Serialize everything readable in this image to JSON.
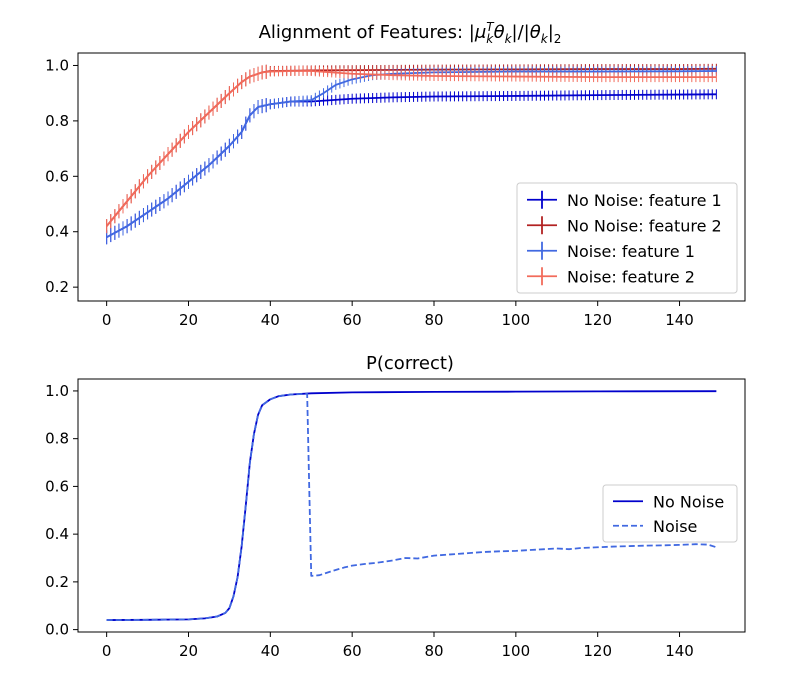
{
  "chart_data": [
    {
      "type": "line",
      "title": "Alignment of Features: |μ_k^T θ_k|/|θ_k|_2",
      "title_parts": {
        "prefix": "Alignment of Features: |",
        "mu": "μ",
        "k": "k",
        "T": "T",
        "theta": "θ",
        "mid": "|/|",
        "suffix": "|",
        "two": "2"
      },
      "xlabel": "",
      "ylabel": "",
      "xlim": [
        -7,
        156
      ],
      "ylim": [
        0.15,
        1.045
      ],
      "xticks": [
        0,
        20,
        40,
        60,
        80,
        100,
        120,
        140
      ],
      "yticks": [
        0.2,
        0.4,
        0.6,
        0.8,
        1.0
      ],
      "xtick_labels": [
        "0",
        "20",
        "40",
        "60",
        "80",
        "100",
        "120",
        "140"
      ],
      "ytick_labels": [
        "0.2",
        "0.4",
        "0.6",
        "0.8",
        "1.0"
      ],
      "error_bars": true,
      "legend": {
        "position": "lower right"
      },
      "series": [
        {
          "name": "No Noise: feature 1",
          "color": "#0000cc",
          "style": "solid",
          "x": [
            0,
            5,
            10,
            15,
            20,
            25,
            30,
            33,
            35,
            37,
            40,
            45,
            50,
            55,
            60,
            70,
            80,
            100,
            120,
            140,
            149
          ],
          "y": [
            0.38,
            0.42,
            0.47,
            0.52,
            0.58,
            0.64,
            0.71,
            0.76,
            0.82,
            0.85,
            0.86,
            0.87,
            0.87,
            0.875,
            0.88,
            0.885,
            0.888,
            0.89,
            0.893,
            0.895,
            0.896
          ]
        },
        {
          "name": "No Noise: feature 2",
          "color": "#b22222",
          "style": "solid",
          "x": [
            0,
            5,
            10,
            15,
            20,
            25,
            30,
            33,
            35,
            38,
            40,
            45,
            50,
            60,
            80,
            100,
            120,
            140,
            149
          ],
          "y": [
            0.42,
            0.51,
            0.6,
            0.68,
            0.76,
            0.83,
            0.9,
            0.94,
            0.96,
            0.975,
            0.98,
            0.981,
            0.982,
            0.983,
            0.985,
            0.986,
            0.987,
            0.987,
            0.988
          ]
        },
        {
          "name": "Noise: feature 1",
          "color": "#4169e1",
          "style": "solid",
          "x": [
            0,
            5,
            10,
            15,
            20,
            25,
            30,
            33,
            35,
            37,
            40,
            45,
            50,
            53,
            56,
            60,
            65,
            70,
            80,
            100,
            120,
            140,
            149
          ],
          "y": [
            0.38,
            0.42,
            0.47,
            0.52,
            0.58,
            0.64,
            0.71,
            0.76,
            0.82,
            0.85,
            0.86,
            0.87,
            0.875,
            0.9,
            0.93,
            0.95,
            0.965,
            0.97,
            0.975,
            0.978,
            0.978,
            0.979,
            0.98
          ]
        },
        {
          "name": "Noise: feature 2",
          "color": "#f26b5b",
          "style": "solid",
          "x": [
            0,
            5,
            10,
            15,
            20,
            25,
            30,
            33,
            35,
            38,
            40,
            45,
            50,
            55,
            60,
            70,
            80,
            100,
            120,
            140,
            149
          ],
          "y": [
            0.42,
            0.51,
            0.6,
            0.68,
            0.76,
            0.83,
            0.9,
            0.94,
            0.96,
            0.975,
            0.978,
            0.98,
            0.98,
            0.975,
            0.97,
            0.965,
            0.962,
            0.96,
            0.958,
            0.958,
            0.958
          ]
        }
      ]
    },
    {
      "type": "line",
      "title": "P(correct)",
      "xlabel": "",
      "ylabel": "",
      "xlim": [
        -7,
        156
      ],
      "ylim": [
        -0.01,
        1.05
      ],
      "xticks": [
        0,
        20,
        40,
        60,
        80,
        100,
        120,
        140
      ],
      "yticks": [
        0.0,
        0.2,
        0.4,
        0.6,
        0.8,
        1.0
      ],
      "xtick_labels": [
        "0",
        "20",
        "40",
        "60",
        "80",
        "100",
        "120",
        "140"
      ],
      "ytick_labels": [
        "0.0",
        "0.2",
        "0.4",
        "0.6",
        "0.8",
        "1.0"
      ],
      "legend": {
        "position": "center right"
      },
      "series": [
        {
          "name": "No Noise",
          "color": "#0000cc",
          "style": "solid",
          "x": [
            0,
            10,
            20,
            24,
            27,
            29,
            30,
            31,
            32,
            33,
            34,
            35,
            36,
            37,
            38,
            40,
            42,
            45,
            50,
            60,
            80,
            100,
            120,
            149
          ],
          "y": [
            0.04,
            0.041,
            0.043,
            0.047,
            0.055,
            0.07,
            0.09,
            0.14,
            0.22,
            0.35,
            0.52,
            0.7,
            0.82,
            0.9,
            0.94,
            0.965,
            0.978,
            0.985,
            0.99,
            0.994,
            0.996,
            0.997,
            0.998,
            0.999
          ]
        },
        {
          "name": "Noise",
          "color": "#4169e1",
          "style": "dashed",
          "x": [
            0,
            10,
            20,
            24,
            27,
            29,
            30,
            31,
            32,
            33,
            34,
            35,
            36,
            37,
            38,
            40,
            42,
            45,
            49,
            49.5,
            50,
            52,
            55,
            58,
            60,
            63,
            66,
            70,
            73,
            76,
            80,
            84,
            88,
            92,
            96,
            100,
            104,
            107,
            110,
            113,
            116,
            120,
            124,
            128,
            132,
            136,
            140,
            144,
            147,
            149
          ],
          "y": [
            0.04,
            0.041,
            0.043,
            0.047,
            0.055,
            0.07,
            0.09,
            0.14,
            0.22,
            0.35,
            0.52,
            0.7,
            0.82,
            0.9,
            0.94,
            0.965,
            0.978,
            0.985,
            0.988,
            0.6,
            0.225,
            0.228,
            0.245,
            0.26,
            0.268,
            0.275,
            0.28,
            0.29,
            0.3,
            0.298,
            0.31,
            0.315,
            0.32,
            0.325,
            0.328,
            0.33,
            0.334,
            0.337,
            0.34,
            0.337,
            0.342,
            0.345,
            0.348,
            0.35,
            0.352,
            0.353,
            0.355,
            0.358,
            0.356,
            0.345
          ]
        }
      ]
    }
  ]
}
